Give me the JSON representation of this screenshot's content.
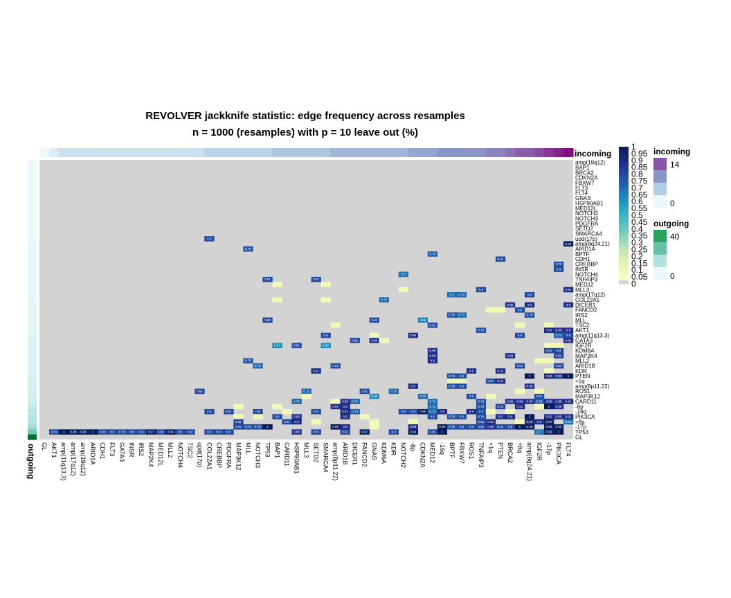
{
  "chart_data": {
    "type": "heatmap",
    "title_line1": "REVOLVER jackknife statistic: edge frequency across resamples",
    "title_line2": "n = 1000 (resamples) with p = 10 leave out (%)",
    "columns": [
      "GL",
      "AKT1",
      "amp(11q13.3)",
      "amp(17q12)",
      "amp(19q12)",
      "ARID1A",
      "CDH1",
      "FLT3",
      "GATA3",
      "INSR",
      "IRS2",
      "MAP2K4",
      "MED12L",
      "MLL2",
      "NOTCH4",
      "TSC2",
      "upd(17p)",
      "COL22A1",
      "CREBBP",
      "PDGFRA",
      "MAP3K12",
      "MLL",
      "NOTCH3",
      "TP53",
      "BAP1",
      "CARD11",
      "HSP90AB1",
      "MLL3",
      "SETD2",
      "SMARCA4",
      "amp(8p11.22)",
      "ARID1B",
      "DICER1",
      "FANCD2",
      "GNAS",
      "KDM6A",
      "KDR",
      "NOTCH2",
      "-8p",
      "CDKN2A",
      "MED12",
      "-16q",
      "BPTF",
      "FBXW7",
      "ROS1",
      "TNFAIP3",
      "+1q",
      "PTEN",
      "BRCA2",
      "+8q",
      "amp(8q24.21)",
      "IGF2R",
      "-17p",
      "PIK3CA",
      "FLT4"
    ],
    "rows": [
      "amp(19q12)",
      "BAP1",
      "BRCA2",
      "CDKN2A",
      "FBXW7",
      "FLT3",
      "FLT4",
      "GNAS",
      "HSP90AB1",
      "MED12L",
      "NOTCH2",
      "NOTCH3",
      "PDGFRA",
      "SETD2",
      "SMARCA4",
      "upd(17p)",
      "amp(8q24.21)",
      "ARID1A",
      "BPTF",
      "CDH1",
      "CREBBP",
      "INSR",
      "NOTCH4",
      "TNFAIP3",
      "MED12",
      "MLL3",
      "amp(17q12)",
      "COL22A1",
      "DICER1",
      "FANCD2",
      "IRS2",
      "MLL",
      "TSC2",
      "AKT1",
      "amp(11q13.3)",
      "GATA3",
      "IGF2R",
      "KDM6A",
      "MAP2K4",
      "MLL2",
      "ARID1B",
      "KDR",
      "PTEN",
      "+1q",
      "amp(8p11.22)",
      "ROS1",
      "MAP3K12",
      "CARD11",
      "-8p",
      "-16q",
      "PIK3CA",
      "+8q",
      "-17p",
      "TP53",
      "GL"
    ],
    "incoming_values": [
      0,
      1,
      2,
      2,
      2,
      2,
      2,
      2,
      2,
      2,
      2,
      2,
      2,
      2,
      2,
      2,
      2,
      3,
      3,
      3,
      3,
      3,
      3,
      3,
      4,
      4,
      4,
      4,
      4,
      4,
      5,
      5,
      5,
      5,
      5,
      5,
      5,
      5,
      6,
      6,
      6,
      7,
      7,
      7,
      7,
      7,
      8,
      8,
      9,
      10,
      10,
      11,
      12,
      13,
      14
    ],
    "outgoing_values": [
      0,
      0,
      0,
      0,
      0,
      0,
      0,
      0,
      0,
      0,
      0,
      0,
      0,
      0,
      0,
      0,
      1,
      1,
      1,
      1,
      1,
      1,
      1,
      1,
      1,
      1,
      1,
      1,
      2,
      2,
      2,
      2,
      2,
      2,
      2,
      3,
      3,
      3,
      3,
      3,
      3,
      3,
      3,
      4,
      4,
      4,
      5,
      5,
      7,
      8,
      9,
      10,
      12,
      18,
      40
    ],
    "cells": [
      [
        "upd(17p)",
        "COL22A1",
        0.8
      ],
      [
        "amp(8q24.21)",
        "FLT4",
        0.99
      ],
      [
        "ARID1A",
        "MLL",
        0.78
      ],
      [
        "BPTF",
        "MED12",
        0.74
      ],
      [
        "CDH1",
        "PTEN",
        0.81
      ],
      [
        "CREBBP",
        "PIK3CA",
        0.79
      ],
      [
        "INSR",
        "PIK3CA",
        0.8
      ],
      [
        "NOTCH4",
        "NOTCH2",
        0.7
      ],
      [
        "TNFAIP3",
        "TP53",
        0.81
      ],
      [
        "TNFAIP3",
        "SETD2",
        0.81
      ],
      [
        "MED12",
        "BAP1",
        0.1
      ],
      [
        "MED12",
        "SMARCA4",
        0.1
      ],
      [
        "MLL3",
        "NOTCH2",
        0.1
      ],
      [
        "MLL3",
        "TNFAIP3",
        0.8
      ],
      [
        "MLL3",
        "FLT4",
        0.91
      ],
      [
        "amp(17q12)",
        "BPTF",
        0.7
      ],
      [
        "amp(17q12)",
        "FBXW7",
        0.72
      ],
      [
        "amp(17q12)",
        "amp(8q24.21)",
        0.8
      ],
      [
        "COL22A1",
        "BAP1",
        0.1
      ],
      [
        "COL22A1",
        "SMARCA4",
        0.1
      ],
      [
        "COL22A1",
        "KDM6A",
        0.72
      ],
      [
        "DICER1",
        "BRCA2",
        0.88
      ],
      [
        "DICER1",
        "amp(8q24.21)",
        0.9
      ],
      [
        "DICER1",
        "FLT4",
        0.9
      ],
      [
        "FANCD2",
        "+1q",
        0.1
      ],
      [
        "FANCD2",
        "PTEN",
        0.1
      ],
      [
        "FANCD2",
        "+8q",
        0.8
      ],
      [
        "IRS2",
        "BPTF",
        0.78
      ],
      [
        "IRS2",
        "FBXW7",
        0.71
      ],
      [
        "IRS2",
        "amp(8q24.21)",
        0.78
      ],
      [
        "MLL",
        "TP53",
        0.82
      ],
      [
        "MLL",
        "GNAS",
        0.81
      ],
      [
        "MLL",
        "CDKN2A",
        0.65
      ],
      [
        "TSC2",
        "amp(8p11.22)",
        0.1
      ],
      [
        "TSC2",
        "MED12",
        0.81
      ],
      [
        "TSC2",
        "+8q",
        0.1
      ],
      [
        "TSC2",
        "-17p",
        0.1
      ],
      [
        "AKT1",
        "TNFAIP3",
        0.79
      ],
      [
        "AKT1",
        "-17p",
        0.92
      ],
      [
        "AKT1",
        "PIK3CA",
        0.89
      ],
      [
        "AKT1",
        "FLT4",
        0.9
      ],
      [
        "amp(11q13.3)",
        "SMARCA4",
        0.8
      ],
      [
        "amp(11q13.3)",
        "GNAS",
        0.1
      ],
      [
        "amp(11q13.3)",
        "-8p",
        0.89
      ],
      [
        "amp(11q13.3)",
        "+8q",
        0.8
      ],
      [
        "amp(11q13.3)",
        "PIK3CA",
        0.74
      ],
      [
        "amp(11q13.3)",
        "FLT4",
        0.8
      ],
      [
        "GATA3",
        "DICER1",
        0.81
      ],
      [
        "GATA3",
        "GNAS",
        0.89
      ],
      [
        "GATA3",
        "KDM6A",
        0.1
      ],
      [
        "GATA3",
        "FLT4",
        0.91
      ],
      [
        "IGF2R",
        "BAP1",
        0.64
      ],
      [
        "IGF2R",
        "HSP90AB1",
        0.81
      ],
      [
        "IGF2R",
        "SMARCA4",
        0.63
      ],
      [
        "IGF2R",
        "-17p",
        0.1
      ],
      [
        "IGF2R",
        "PIK3CA",
        0.1
      ],
      [
        "KDM6A",
        "MED12",
        0.89
      ],
      [
        "KDM6A",
        "-17p",
        0.81
      ],
      [
        "KDM6A",
        "PIK3CA",
        0.8
      ],
      [
        "MAP2K4",
        "MED12",
        0.89
      ],
      [
        "MAP2K4",
        "BRCA2",
        0.89
      ],
      [
        "MAP2K4",
        "PIK3CA",
        0.82
      ],
      [
        "MLL2",
        "MLL",
        0.78
      ],
      [
        "MLL2",
        "MED12",
        0.9
      ],
      [
        "MLL2",
        "IGF2R",
        0.1
      ],
      [
        "MLL2",
        "-17p",
        0.1
      ],
      [
        "ARID1B",
        "NOTCH3",
        0.72
      ],
      [
        "ARID1B",
        "amp(8p11.22)",
        0.81
      ],
      [
        "ARID1B",
        "+8q",
        0.81
      ],
      [
        "ARID1B",
        "PIK3CA",
        0.82
      ],
      [
        "KDR",
        "SETD2",
        0.91
      ],
      [
        "KDR",
        "ROS1",
        0.9
      ],
      [
        "KDR",
        "PTEN",
        0.91
      ],
      [
        "KDR",
        "-17p",
        0.1
      ],
      [
        "PTEN",
        "BPTF",
        0.79
      ],
      [
        "PTEN",
        "FBXW7",
        0.8
      ],
      [
        "PTEN",
        "amp(8q24.21)",
        1
      ],
      [
        "PTEN",
        "-17p",
        0.92
      ],
      [
        "PTEN",
        "PIK3CA",
        0.89
      ],
      [
        "PTEN",
        "FLT4",
        1
      ],
      [
        "+1q",
        "BPTF",
        0.1
      ],
      [
        "+1q",
        "FBXW7",
        0.1
      ],
      [
        "+1q",
        "+1q",
        0.81
      ],
      [
        "+1q",
        "PTEN",
        0.91
      ],
      [
        "amp(8p11.22)",
        "-8p",
        0.9
      ],
      [
        "amp(8p11.22)",
        "BPTF",
        0.78
      ],
      [
        "amp(8p11.22)",
        "FBXW7",
        0.8
      ],
      [
        "amp(8p11.22)",
        "amp(8q24.21)",
        0.88
      ],
      [
        "ROS1",
        "upd(17p)",
        0.82
      ],
      [
        "ROS1",
        "MLL3",
        0.73
      ],
      [
        "ROS1",
        "FANCD2",
        0.81
      ],
      [
        "ROS1",
        "KDR",
        0.73
      ],
      [
        "ROS1",
        "+8q",
        0.1
      ],
      [
        "ROS1",
        "IGF2R",
        0.1
      ],
      [
        "MAP3K12",
        "MLL3",
        0.1
      ],
      [
        "MAP3K12",
        "GNAS",
        0.65
      ],
      [
        "MAP3K12",
        "CDKN2A",
        0.72
      ],
      [
        "MAP3K12",
        "ROS1",
        0.8
      ],
      [
        "MAP3K12",
        "+1q",
        0.1
      ],
      [
        "MAP3K12",
        "IGF2R",
        0.81
      ],
      [
        "CARD11",
        "HSP90AB1",
        0.75
      ],
      [
        "CARD11",
        "amp(8p11.22)",
        0.1
      ],
      [
        "CARD11",
        "ARID1B",
        0.89
      ],
      [
        "CARD11",
        "DICER1",
        0.74
      ],
      [
        "CARD11",
        "MED12",
        0.72
      ],
      [
        "CARD11",
        "TNFAIP3",
        0.79
      ],
      [
        "CARD11",
        "BRCA2",
        0.88
      ],
      [
        "CARD11",
        "+8q",
        0.88
      ],
      [
        "CARD11",
        "amp(8q24.21)",
        0.89
      ],
      [
        "CARD11",
        "IGF2R",
        0.76
      ],
      [
        "CARD11",
        "-17p",
        0.88
      ],
      [
        "CARD11",
        "PIK3CA",
        0.88
      ],
      [
        "CARD11",
        "FLT4",
        0.91
      ],
      [
        "-8p",
        "MAP3K12",
        0.1
      ],
      [
        "-8p",
        "BAP1",
        0.1
      ],
      [
        "-8p",
        "amp(8p11.22)",
        0.91
      ],
      [
        "-8p",
        "ARID1B",
        0.9
      ],
      [
        "-8p",
        "MED12",
        0.71
      ],
      [
        "-8p",
        "TNFAIP3",
        0.79
      ],
      [
        "-8p",
        "PTEN",
        0.83
      ],
      [
        "-8p",
        "+8q",
        0.91
      ],
      [
        "-8p",
        "IGF2R",
        0.1
      ],
      [
        "-8p",
        "-17p",
        1
      ],
      [
        "-8p",
        "PIK3CA",
        0.89
      ],
      [
        "-16q",
        "PDGFRA",
        0.81
      ],
      [
        "-16q",
        "COL22A1",
        0.8
      ],
      [
        "-16q",
        "NOTCH3",
        0.8
      ],
      [
        "-16q",
        "CARD11",
        0.1
      ],
      [
        "-16q",
        "SETD2",
        0.81
      ],
      [
        "-16q",
        "ARID1B",
        0.91
      ],
      [
        "-16q",
        "DICER1",
        0.74
      ],
      [
        "-16q",
        "-8p",
        0.8
      ],
      [
        "-16q",
        "NOTCH2",
        0.8
      ],
      [
        "-16q",
        "CDKN2A",
        0.99
      ],
      [
        "-16q",
        "MED12",
        0.72
      ],
      [
        "-16q",
        "-16q",
        0.9
      ],
      [
        "-16q",
        "ROS1",
        0.9
      ],
      [
        "-16q",
        "TNFAIP3",
        0.8
      ],
      [
        "-16q",
        "+1q",
        0.1
      ],
      [
        "-16q",
        "BRCA2",
        0.1
      ],
      [
        "PIK3CA",
        "MAP3K12",
        0.1
      ],
      [
        "PIK3CA",
        "NOTCH3",
        0.1
      ],
      [
        "PIK3CA",
        "BAP1",
        0.8
      ],
      [
        "PIK3CA",
        "HSP90AB1",
        0.89
      ],
      [
        "PIK3CA",
        "ARID1B",
        0.9
      ],
      [
        "PIK3CA",
        "FANCD2",
        0.1
      ],
      [
        "PIK3CA",
        "MED12",
        0.8
      ],
      [
        "PIK3CA",
        "BPTF",
        0.78
      ],
      [
        "PIK3CA",
        "FBXW7",
        0.8
      ],
      [
        "PIK3CA",
        "TNFAIP3",
        0.79
      ],
      [
        "PIK3CA",
        "PTEN",
        0.9
      ],
      [
        "PIK3CA",
        "BRCA2",
        0.9
      ],
      [
        "PIK3CA",
        "amp(8q24.21)",
        1
      ],
      [
        "PIK3CA",
        "-17p",
        0.92
      ],
      [
        "PIK3CA",
        "PIK3CA",
        0.89
      ],
      [
        "PIK3CA",
        "FLT4",
        0.91
      ],
      [
        "+8q",
        "MAP3K12",
        0.82
      ],
      [
        "+8q",
        "CARD11",
        0.81
      ],
      [
        "+8q",
        "HSP90AB1",
        0.9
      ],
      [
        "+8q",
        "SETD2",
        0.1
      ],
      [
        "+8q",
        "GNAS",
        0.1
      ],
      [
        "+8q",
        "-8p",
        0.1
      ],
      [
        "+8q",
        "TNFAIP3",
        0.81
      ],
      [
        "+8q",
        "+1q",
        0.91
      ],
      [
        "+8q",
        "+8q",
        0.1
      ],
      [
        "+8q",
        "amp(8q24.21)",
        0.92
      ],
      [
        "+8q",
        "IGF2R",
        0.9
      ],
      [
        "+8q",
        "-17p",
        0.97
      ],
      [
        "+8q",
        "FLT4",
        0.69
      ],
      [
        "-17p",
        "MAP3K12",
        0.82
      ],
      [
        "-17p",
        "MLL",
        0.78
      ],
      [
        "-17p",
        "NOTCH3",
        0.78
      ],
      [
        "-17p",
        "TP53",
        1
      ],
      [
        "-17p",
        "amp(8p11.22)",
        0.99
      ],
      [
        "-17p",
        "ARID1B",
        0.9
      ],
      [
        "-17p",
        "GNAS",
        0.1
      ],
      [
        "-17p",
        "-8p",
        0.88
      ],
      [
        "-17p",
        "-16q",
        0.99
      ],
      [
        "-17p",
        "BPTF",
        0.78
      ],
      [
        "-17p",
        "FBXW7",
        0.8
      ],
      [
        "-17p",
        "ROS1",
        0.8
      ],
      [
        "-17p",
        "TNFAIP3",
        0.82
      ],
      [
        "-17p",
        "+1q",
        0.89
      ],
      [
        "-17p",
        "PTEN",
        0.81
      ],
      [
        "-17p",
        "BRCA2",
        0.8
      ],
      [
        "-17p",
        "+8q",
        1
      ],
      [
        "-17p",
        "amp(8q24.21)",
        0.99
      ],
      [
        "-17p",
        "-17p",
        0.99
      ],
      [
        "-17p",
        "PIK3CA",
        0.99
      ],
      [
        "TP53",
        "AKT1",
        0.81
      ],
      [
        "TP53",
        "amp(11q13.3)",
        1
      ],
      [
        "TP53",
        "amp(17q12)",
        0.98
      ],
      [
        "TP53",
        "amp(19q12)",
        0.98
      ],
      [
        "TP53",
        "ARID1A",
        1
      ],
      [
        "TP53",
        "CDH1",
        0.82
      ],
      [
        "TP53",
        "FLT3",
        0.8
      ],
      [
        "TP53",
        "GATA3",
        0.79
      ],
      [
        "TP53",
        "INSR",
        0.8
      ],
      [
        "TP53",
        "IRS2",
        0.8
      ],
      [
        "TP53",
        "MAP2K4",
        0.97
      ],
      [
        "TP53",
        "MED12L",
        0.82
      ],
      [
        "TP53",
        "MLL2",
        0.98
      ],
      [
        "TP53",
        "NOTCH4",
        0.8
      ],
      [
        "TP53",
        "TSC2",
        0.82
      ],
      [
        "TP53",
        "COL22A1",
        0.8
      ],
      [
        "TP53",
        "CREBBP",
        0.81
      ],
      [
        "TP53",
        "PDGFRA",
        0.8
      ],
      [
        "TP53",
        "HSP90AB1",
        0.88
      ],
      [
        "TP53",
        "SETD2",
        0.82
      ],
      [
        "TP53",
        "ARID1B",
        0.82
      ],
      [
        "TP53",
        "FANCD2",
        0.97
      ],
      [
        "TP53",
        "KDR",
        0.8
      ],
      [
        "TP53",
        "-8p",
        0.99
      ],
      [
        "TP53",
        "MED12",
        0.81
      ],
      [
        "TP53",
        "-16q",
        1
      ],
      [
        "TP53",
        "IGF2R",
        0.7
      ],
      [
        "TP53",
        "-17p",
        0.98
      ],
      [
        "TP53",
        "PIK3CA",
        1
      ]
    ],
    "colorbar_ticks": [
      "1",
      "0.95",
      "0.9",
      "0.85",
      "0.8",
      "0.75",
      "0.7",
      "0.65",
      "0.6",
      "0.55",
      "0.5",
      "0.45",
      "0.4",
      "0.35",
      "0.3",
      "0.25",
      "0.2",
      "0.15",
      "0.1",
      "0.05",
      "0"
    ],
    "incoming_title": "incoming",
    "outgoing_title": "outgoing",
    "incoming_legend": [
      "14",
      "0"
    ],
    "outgoing_legend": [
      "40",
      "0"
    ],
    "colors": {
      "empty": "#d3d3d3",
      "ramp": [
        "#ffffd9",
        "#edf8b1",
        "#c7e9b4",
        "#7fcdbb",
        "#41b6c4",
        "#1d91c0",
        "#225ea8",
        "#253494",
        "#081d58"
      ],
      "incoming_ramp": [
        "#edf8fb",
        "#b3cde3",
        "#8c96c6",
        "#8856a7",
        "#810f7c"
      ],
      "outgoing_ramp": [
        "#edf8fb",
        "#b2e2e2",
        "#66c2a4",
        "#2ca25f",
        "#006d2c"
      ]
    }
  }
}
